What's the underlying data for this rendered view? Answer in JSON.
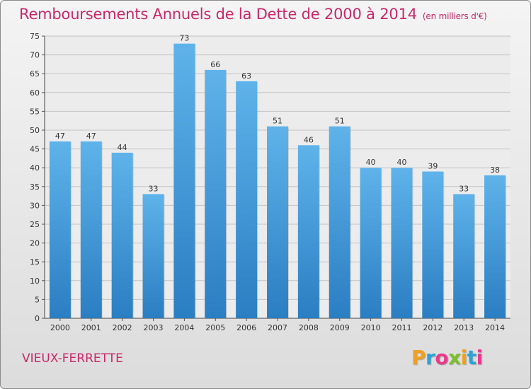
{
  "header": {
    "title": "Remboursements Annuels de la Dette de 2000 à 2014",
    "unit": "(en milliers d'€)"
  },
  "footer": {
    "town": "VIEUX-FERRETTE",
    "logo": "Proxiti"
  },
  "colors": {
    "accent": "#c8286a",
    "bar_top": "#5fb3ea",
    "bar_bottom": "#2a7ec2"
  },
  "chart_data": {
    "type": "bar",
    "title": "Remboursements Annuels de la Dette de 2000 à 2014",
    "subtitle": "(en milliers d'€)",
    "xlabel": "",
    "ylabel": "",
    "categories": [
      "2000",
      "2001",
      "2002",
      "2003",
      "2004",
      "2005",
      "2006",
      "2007",
      "2008",
      "2009",
      "2010",
      "2011",
      "2012",
      "2013",
      "2014"
    ],
    "values": [
      47,
      47,
      44,
      33,
      73,
      66,
      63,
      51,
      46,
      51,
      40,
      40,
      39,
      33,
      38
    ],
    "ylim": [
      0,
      75
    ],
    "yticks": [
      0,
      5,
      10,
      15,
      20,
      25,
      30,
      35,
      40,
      45,
      50,
      55,
      60,
      65,
      70,
      75
    ],
    "grid": true,
    "legend": "none"
  }
}
